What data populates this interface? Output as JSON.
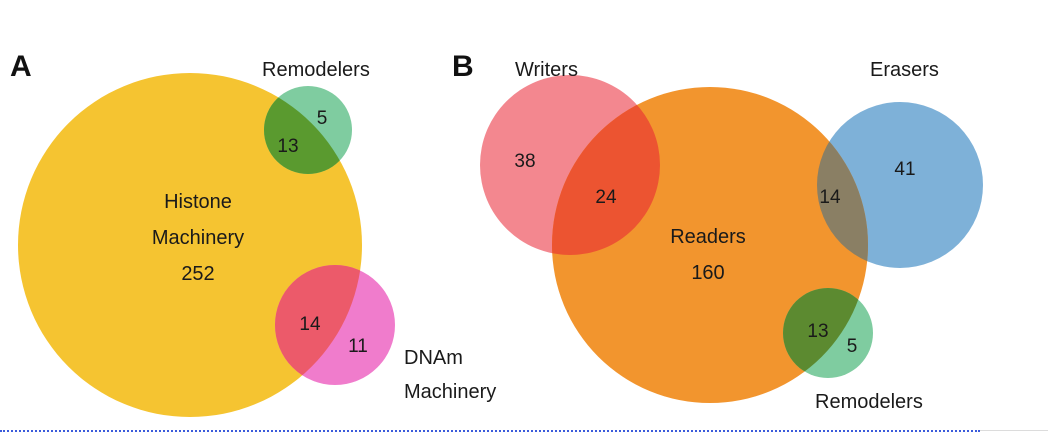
{
  "panel_a": {
    "label": "A",
    "histone_label_line1": "Histone",
    "histone_label_line2": "Machinery",
    "histone_count": "252",
    "remodelers_label": "Remodelers",
    "remodelers_only": "5",
    "histone_remodelers": "13",
    "dnam_label_line1": "DNAm",
    "dnam_label_line2": "Machinery",
    "histone_dnam": "14",
    "dnam_only": "11"
  },
  "panel_b": {
    "label": "B",
    "writers_label": "Writers",
    "writers_only": "38",
    "writers_readers": "24",
    "readers_label": "Readers",
    "readers_count": "160",
    "erasers_label": "Erasers",
    "erasers_only": "41",
    "readers_erasers": "14",
    "remodelers_label": "Remodelers",
    "readers_remodelers": "13",
    "remodelers_only": "5"
  },
  "colors": {
    "histone": "#f5c431",
    "remodelers": "#7fcca0",
    "remodelers_overlap": "#5a9a2f",
    "dnam": "#f07ccc",
    "dnam_overlap": "#ec5a6a",
    "writers": "#f3878f",
    "readers": "#f2952e",
    "writers_readers_overlap": "#ec5431",
    "erasers": "#7eb1d8",
    "erasers_overlap": "#8a7f64",
    "remodelers_b_overlap": "#5c8a30"
  }
}
